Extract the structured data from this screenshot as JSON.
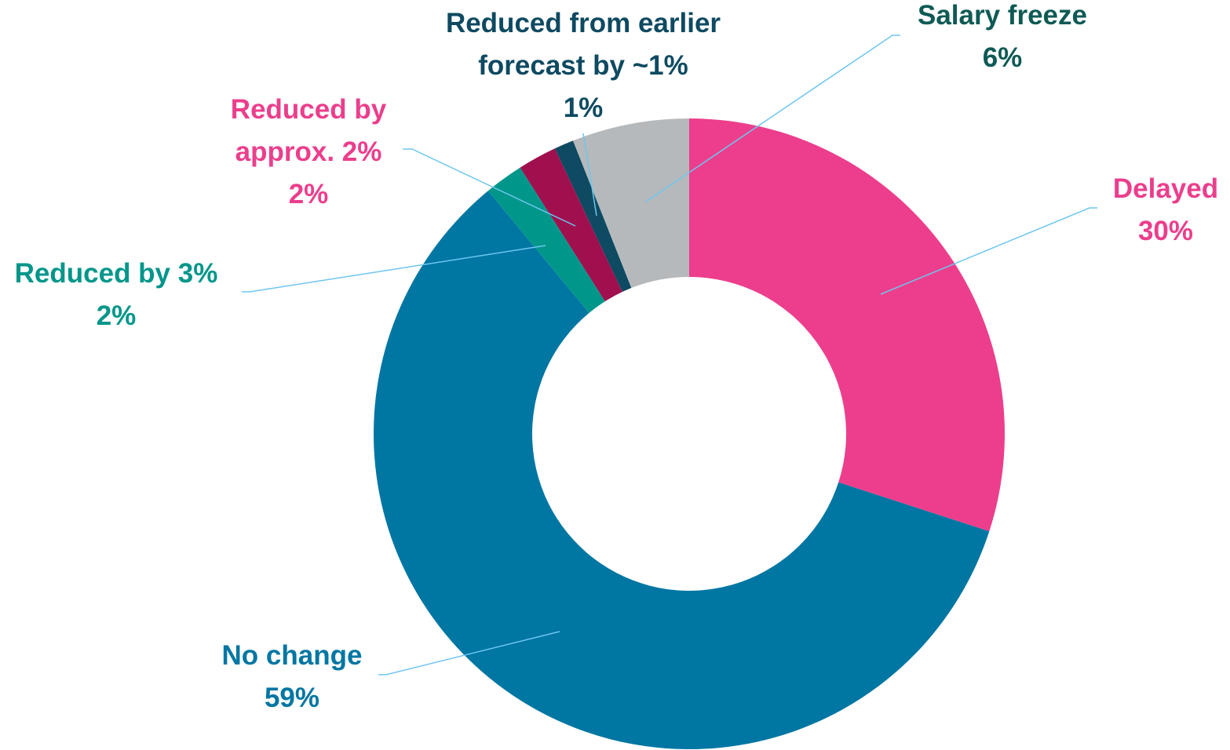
{
  "chart_data": {
    "type": "pie",
    "categories": [
      "Delayed",
      "No change",
      "Reduced by 3%",
      "Reduced by approx. 2%",
      "Reduced from earlier forecast by ~1%",
      "Salary freeze"
    ],
    "values": [
      30,
      59,
      2,
      2,
      1,
      6
    ],
    "value_labels": [
      "30%",
      "59%",
      "2%",
      "2%",
      "1%",
      "6%"
    ],
    "colors": [
      "#ec3e8c",
      "#0076a3",
      "#00968a",
      "#a0104f",
      "#0e4a61",
      "#b5b9bc"
    ],
    "label_colors": [
      "#ec3e8c",
      "#0076a3",
      "#00968a",
      "#ec3e8c",
      "#0e4a61",
      "#0f5a55"
    ],
    "donut": true
  }
}
